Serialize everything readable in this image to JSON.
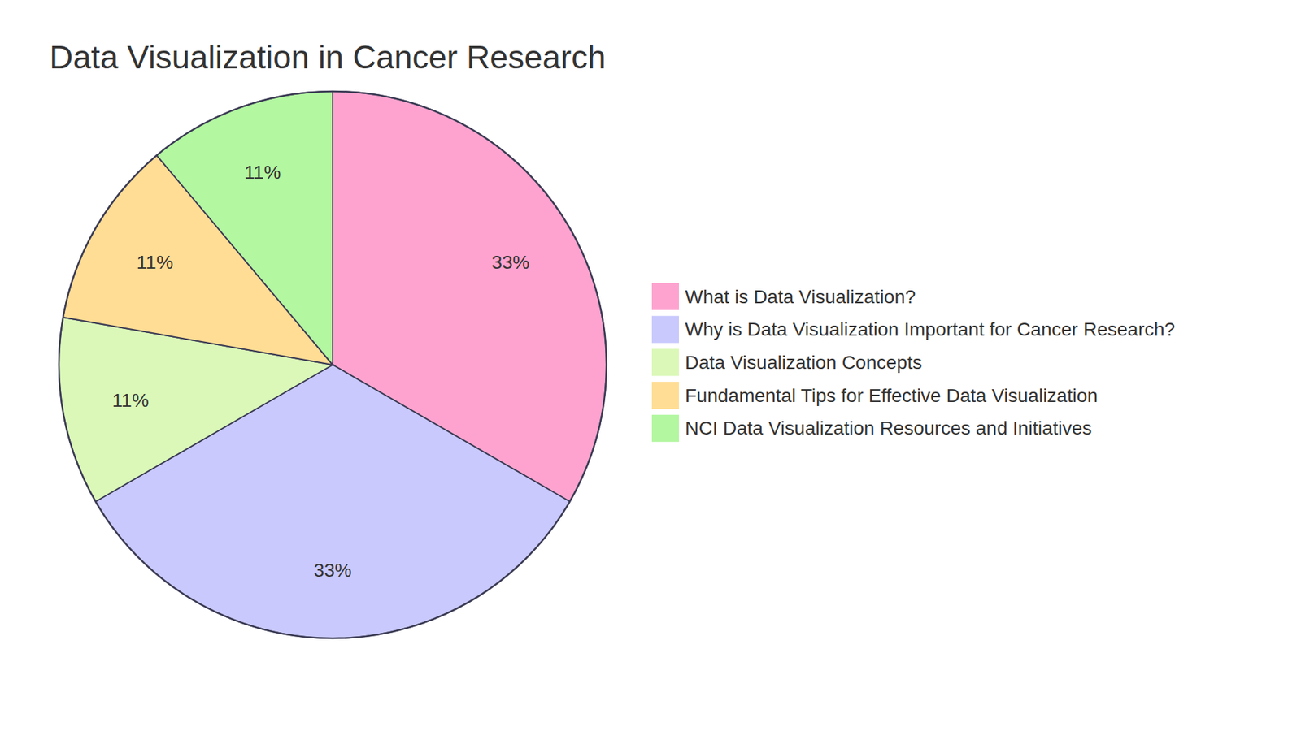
{
  "chart_data": {
    "type": "pie",
    "title": "Data Visualization in Cancer Research",
    "categories": [
      "What is Data Visualization?",
      "Why is Data Visualization Important for Cancer Research?",
      "Data Visualization Concepts",
      "Fundamental Tips for Effective Data Visualization",
      "NCI Data Visualization Resources and Initiatives"
    ],
    "values": [
      33,
      33,
      11,
      11,
      11
    ],
    "value_labels": [
      "33%",
      "33%",
      "11%",
      "11%",
      "11%"
    ],
    "colors": [
      "#fea3cf",
      "#c9c9fe",
      "#dbf8b8",
      "#ffdd94",
      "#b3f7a1"
    ],
    "data_labels": true,
    "legend": "right"
  }
}
